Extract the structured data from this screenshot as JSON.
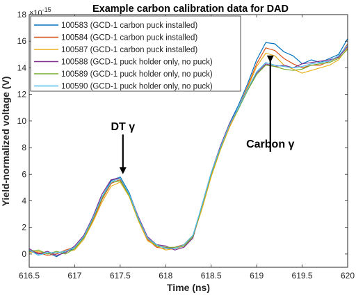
{
  "chart_data": {
    "type": "line",
    "title": "Example carbon calibration data for DAD",
    "xlabel": "Time (ns)",
    "ylabel": "Yield-normalized voltage (V)",
    "y_exponent_label": "×10",
    "y_exponent_power": "-15",
    "xlim": [
      616.5,
      620
    ],
    "ylim": [
      -1,
      18
    ],
    "xticks": [
      616.5,
      617,
      617.5,
      618,
      618.5,
      619,
      619.5,
      620
    ],
    "xtick_labels": [
      "616.5",
      "617",
      "617.5",
      "618",
      "618.5",
      "619",
      "619.5",
      "620"
    ],
    "yticks": [
      0,
      2,
      4,
      6,
      8,
      10,
      12,
      14,
      16,
      18
    ],
    "ytick_labels": [
      "0",
      "2",
      "4",
      "6",
      "8",
      "10",
      "12",
      "14",
      "16",
      "18"
    ],
    "legend_position": "top-left",
    "grid": false,
    "x": [
      616.5,
      616.6,
      616.7,
      616.8,
      616.9,
      617.0,
      617.1,
      617.2,
      617.3,
      617.4,
      617.5,
      617.6,
      617.7,
      617.8,
      617.9,
      618.0,
      618.1,
      618.2,
      618.3,
      618.4,
      618.5,
      618.6,
      618.7,
      618.8,
      618.9,
      619.0,
      619.1,
      619.2,
      619.3,
      619.4,
      619.5,
      619.6,
      619.7,
      619.8,
      619.9,
      620.0
    ],
    "series": [
      {
        "name": "100583 (GCD-1 carbon puck installed)",
        "color": "#0072BD",
        "values": [
          0.3,
          0.0,
          0.1,
          -0.2,
          0.2,
          0.4,
          1.3,
          2.7,
          4.3,
          5.5,
          5.8,
          4.6,
          2.7,
          1.2,
          0.6,
          0.5,
          0.4,
          0.6,
          1.3,
          3.6,
          6.0,
          8.0,
          9.8,
          11.2,
          12.8,
          14.6,
          15.9,
          15.8,
          15.2,
          14.9,
          14.3,
          14.6,
          14.4,
          14.7,
          15.0,
          16.2
        ]
      },
      {
        "name": "100584 (GCD-1 carbon puck installed)",
        "color": "#D95319",
        "values": [
          0.2,
          0.1,
          -0.1,
          0.0,
          0.3,
          0.5,
          1.2,
          2.5,
          4.1,
          5.3,
          5.6,
          4.4,
          2.6,
          1.1,
          0.5,
          0.4,
          0.5,
          0.7,
          1.4,
          3.5,
          5.9,
          7.9,
          9.6,
          11.0,
          12.6,
          14.3,
          15.5,
          15.3,
          14.7,
          14.3,
          14.0,
          14.2,
          14.2,
          14.5,
          14.8,
          15.8
        ]
      },
      {
        "name": "100587 (GCD-1 carbon puck installed)",
        "color": "#EDB120",
        "values": [
          0.1,
          0.2,
          0.0,
          0.1,
          0.2,
          0.3,
          1.1,
          2.4,
          3.9,
          5.1,
          5.4,
          4.3,
          2.5,
          1.0,
          0.6,
          0.3,
          0.4,
          0.6,
          1.3,
          3.4,
          5.8,
          7.8,
          9.5,
          10.9,
          12.5,
          14.1,
          15.1,
          14.9,
          14.2,
          13.9,
          13.6,
          13.8,
          14.0,
          14.2,
          14.6,
          15.5
        ]
      },
      {
        "name": "100588 (GCD-1 puck holder only, no puck)",
        "color": "#7E2F8E",
        "values": [
          0.4,
          0.0,
          0.2,
          -0.1,
          0.1,
          0.6,
          1.4,
          2.8,
          4.5,
          5.6,
          5.7,
          4.5,
          2.8,
          1.3,
          0.7,
          0.6,
          0.3,
          0.5,
          1.2,
          3.7,
          6.1,
          8.1,
          9.8,
          11.0,
          12.4,
          13.6,
          14.3,
          14.1,
          14.2,
          14.0,
          14.3,
          14.4,
          14.5,
          14.6,
          14.8,
          15.6
        ]
      },
      {
        "name": "100589 (GCD-1 puck holder only, no puck)",
        "color": "#77AC30",
        "values": [
          0.2,
          0.3,
          0.0,
          0.2,
          0.0,
          0.4,
          1.2,
          2.6,
          4.2,
          5.4,
          5.5,
          4.4,
          2.6,
          1.2,
          0.6,
          0.5,
          0.5,
          0.6,
          1.3,
          3.6,
          6.0,
          7.9,
          9.7,
          10.9,
          12.3,
          13.5,
          14.2,
          14.1,
          13.9,
          13.8,
          13.9,
          14.2,
          14.3,
          14.4,
          14.7,
          15.4
        ]
      },
      {
        "name": "100590 (GCD-1 puck holder only, no puck)",
        "color": "#4DBEEE",
        "values": [
          0.3,
          -0.1,
          0.1,
          0.1,
          0.2,
          0.5,
          1.3,
          2.7,
          4.3,
          5.4,
          5.7,
          4.5,
          2.7,
          1.2,
          0.7,
          0.4,
          0.4,
          0.7,
          1.4,
          3.7,
          6.1,
          8.0,
          9.7,
          11.0,
          12.4,
          13.7,
          14.4,
          14.2,
          14.1,
          14.0,
          14.1,
          14.3,
          14.4,
          14.5,
          14.9,
          15.7
        ]
      }
    ],
    "annotations": [
      {
        "text": "DT γ",
        "x": 617.53,
        "y": 6.0,
        "text_y": 9.3
      },
      {
        "text": "Carbon γ",
        "x": 619.15,
        "y": 14.4,
        "text_y": 8.0
      }
    ]
  }
}
